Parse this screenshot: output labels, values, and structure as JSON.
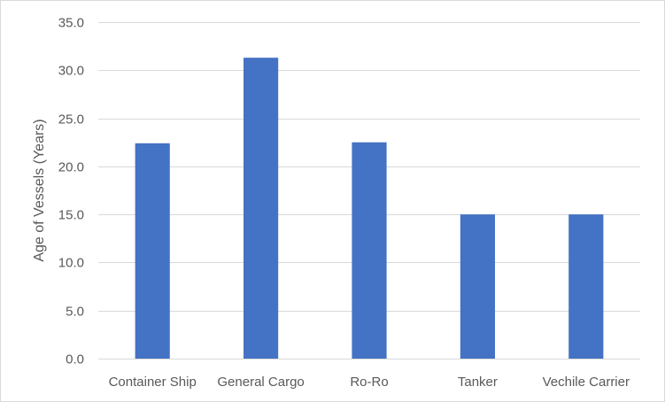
{
  "chart_data": {
    "type": "bar",
    "title": "",
    "xlabel": "",
    "ylabel": "Age of Vessels (Years)",
    "categories": [
      "Container Ship",
      "General Cargo",
      "Ro-Ro",
      "Tanker",
      "Vechile Carrier"
    ],
    "values": [
      22.4,
      31.3,
      22.5,
      15.0,
      15.0
    ],
    "ylim": [
      0,
      35
    ],
    "yticks": [
      "0.0",
      "5.0",
      "10.0",
      "15.0",
      "20.0",
      "25.0",
      "30.0",
      "35.0"
    ],
    "grid": true,
    "legend": "none",
    "colors": {
      "bar": "#4472c4",
      "grid": "#d9d9d9",
      "text": "#595959"
    }
  }
}
